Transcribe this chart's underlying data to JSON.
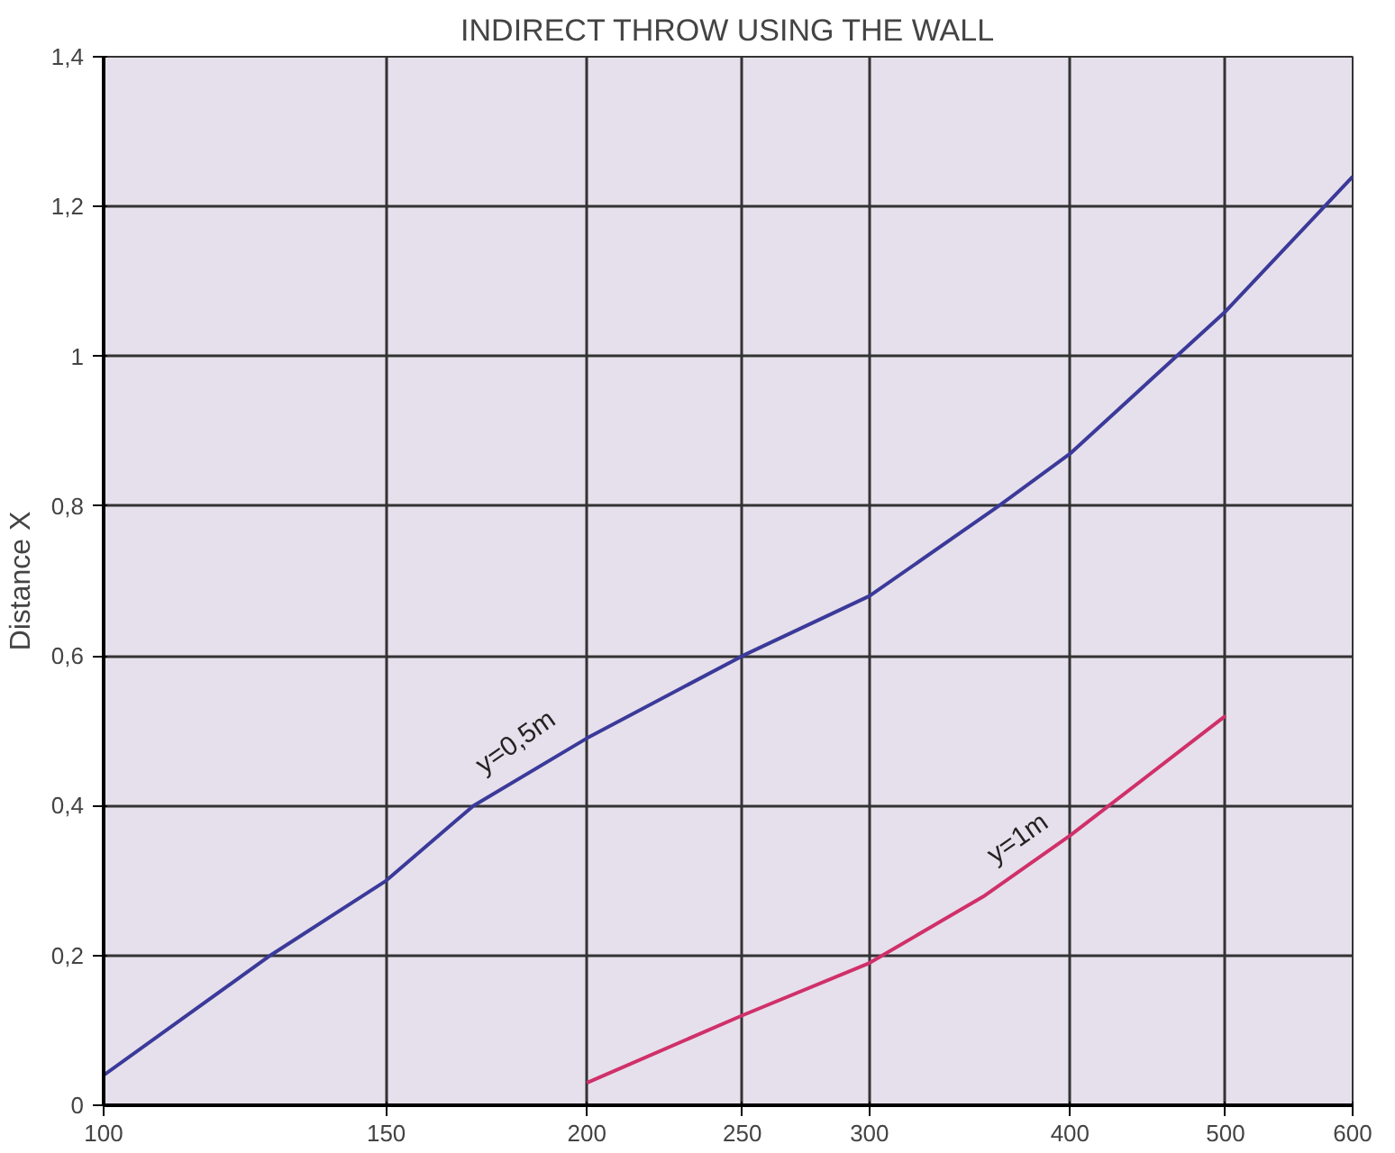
{
  "chart_data": {
    "type": "line",
    "title": "INDIRECT THROW USING THE WALL",
    "ylabel": "Distance X",
    "log": "x",
    "xlim": [
      100,
      600
    ],
    "xticks": [
      100,
      150,
      200,
      250,
      300,
      400,
      500,
      600
    ],
    "ylim": [
      0,
      1.4
    ],
    "yticks": [
      {
        "value": 0,
        "label": "0"
      },
      {
        "value": 0.2,
        "label": "0,2"
      },
      {
        "value": 0.4,
        "label": "0,4"
      },
      {
        "value": 0.6,
        "label": "0,6"
      },
      {
        "value": 0.8,
        "label": "0,8"
      },
      {
        "value": 1,
        "label": "1"
      },
      {
        "value": 1.2,
        "label": "1,2"
      },
      {
        "value": 1.4,
        "label": "1,4"
      }
    ],
    "grid": true,
    "legend": false,
    "series": [
      {
        "name": "y=0,5m",
        "color": "#3b3a9a",
        "x": [
          100,
          127,
          150,
          170,
          200,
          250,
          300,
          361,
          400,
          500,
          600
        ],
        "values": [
          0.04,
          0.2,
          0.3,
          0.4,
          0.49,
          0.6,
          0.68,
          0.8,
          0.87,
          1.06,
          1.24
        ]
      },
      {
        "name": "y=1m",
        "color": "#d0306a",
        "x": [
          200,
          250,
          300,
          354,
          400,
          500
        ],
        "values": [
          0.03,
          0.12,
          0.19,
          0.28,
          0.36,
          0.52
        ]
      }
    ]
  }
}
